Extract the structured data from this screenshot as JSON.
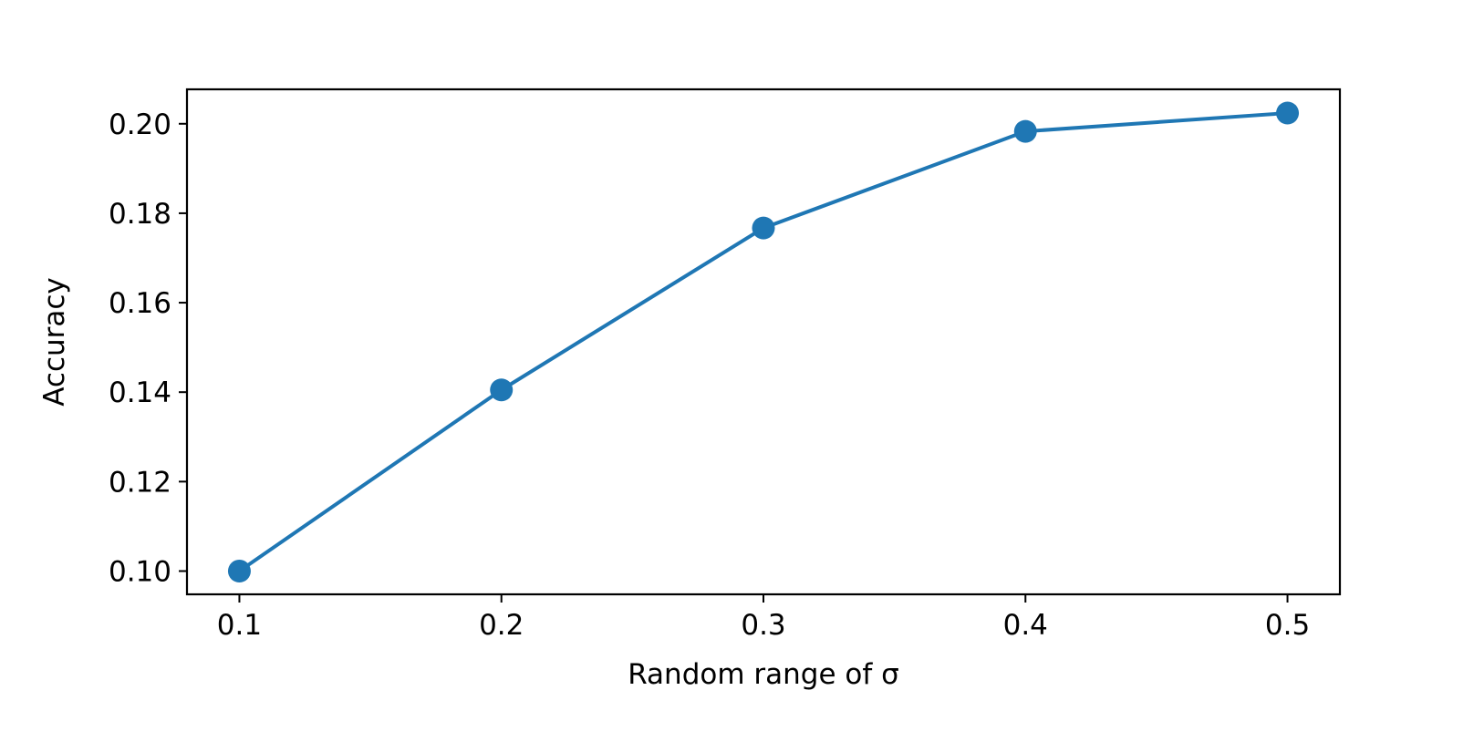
{
  "chart_data": {
    "type": "line",
    "title": "",
    "xlabel": "Random range of σ",
    "ylabel": "Accuracy",
    "x": [
      0.1,
      0.2,
      0.3,
      0.4,
      0.5
    ],
    "series": [
      {
        "values": [
          0.1,
          0.1405,
          0.1767,
          0.1983,
          0.2024
        ],
        "color": "#1f77b4",
        "marker": "circle"
      }
    ],
    "xlim": [
      0.08,
      0.52
    ],
    "ylim": [
      0.0948,
      0.2077
    ],
    "x_ticks": [
      "0.1",
      "0.2",
      "0.3",
      "0.4",
      "0.5"
    ],
    "y_ticks": [
      "0.10",
      "0.12",
      "0.14",
      "0.16",
      "0.18",
      "0.20"
    ],
    "grid": false,
    "legend": "none"
  }
}
